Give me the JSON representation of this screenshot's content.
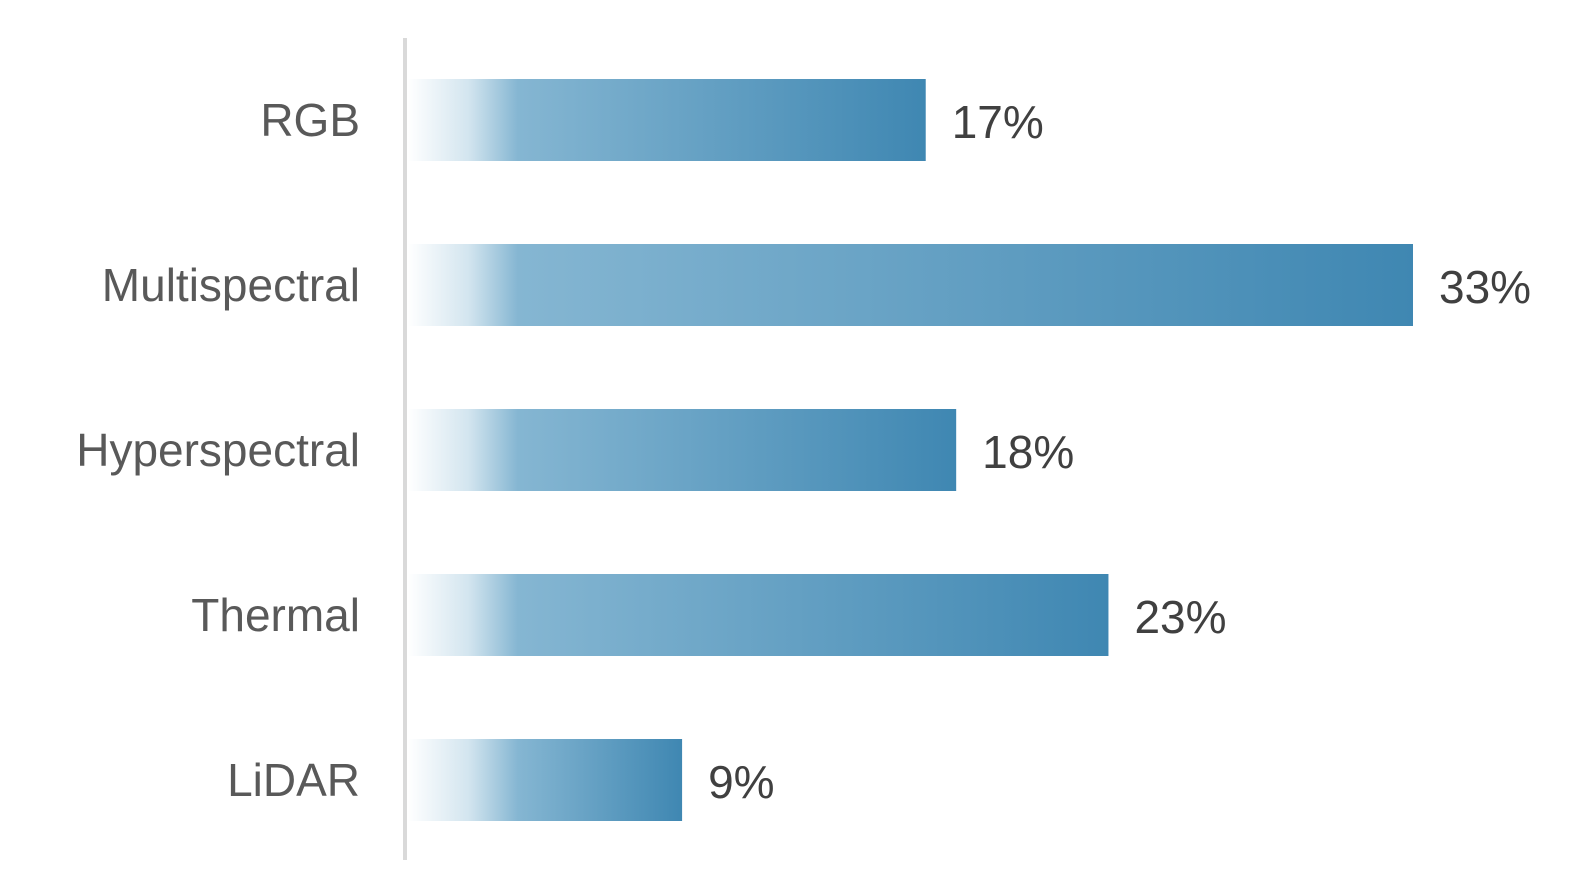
{
  "chart_data": {
    "type": "bar",
    "orientation": "horizontal",
    "categories": [
      "RGB",
      "Multispectral",
      "Hyperspectral",
      "Thermal",
      "LiDAR"
    ],
    "values": [
      17,
      33,
      18,
      23,
      9
    ],
    "value_labels": [
      "17%",
      "33%",
      "18%",
      "23%",
      "9%"
    ],
    "unit": "%",
    "title": "",
    "xlabel": "",
    "ylabel": "",
    "xlim": [
      0,
      33
    ],
    "grid": false,
    "legend": "none",
    "colors": {
      "bar_start": "#ffffff",
      "bar_mid": "#85b6d2",
      "bar_end": "#3f87b2",
      "axis_line": "#d9d9d9",
      "category_text": "#595959",
      "value_text": "#404040"
    }
  }
}
